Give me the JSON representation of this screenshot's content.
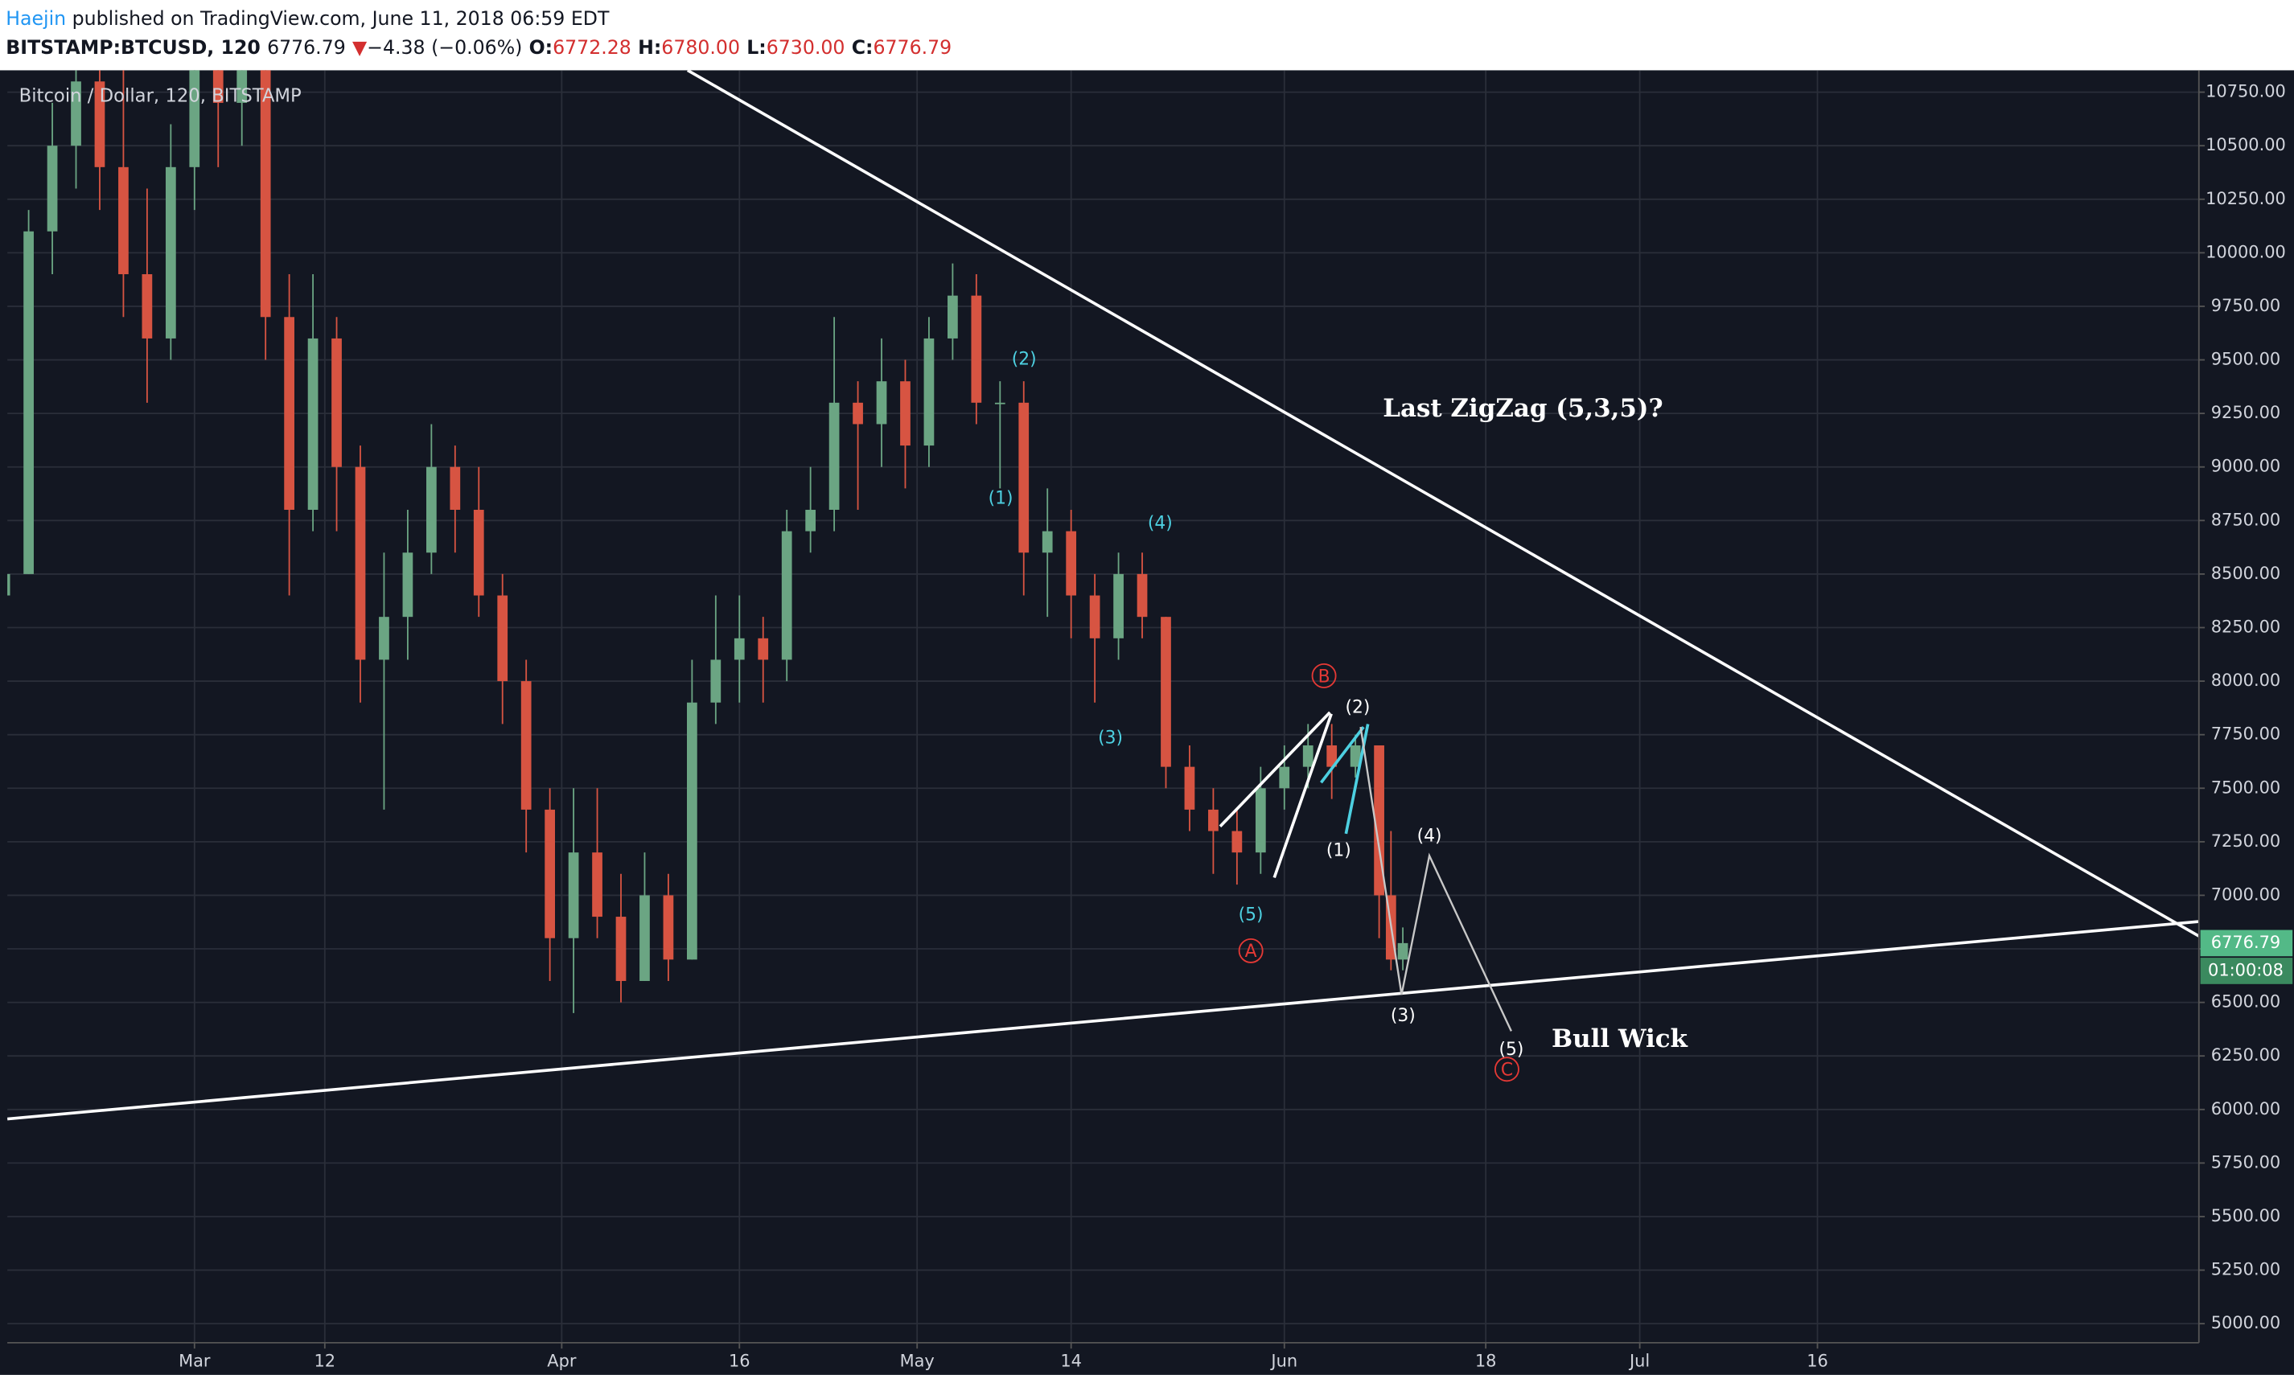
{
  "header": {
    "user": "Haejin",
    "published": "published on TradingView.com, June 11, 2018 06:59 EDT",
    "symbol": "BITSTAMP:BTCUSD, 120",
    "last": "6776.79",
    "arrow": "▼",
    "change": "−4.38 (−0.06%)",
    "o_label": "O:",
    "o": "6772.28",
    "h_label": "H:",
    "h": "6780.00",
    "l_label": "L:",
    "l": "6730.00",
    "c_label": "C:",
    "c": "6776.79"
  },
  "chart_data": {
    "type": "candlestick",
    "title": "Bitcoin / Dollar, 120, BITSTAMP",
    "up_color": "#6ba583",
    "down_color": "#d75442",
    "grid": true,
    "x": [
      44,
      46,
      48,
      50,
      52,
      54,
      56,
      58,
      60,
      62,
      64,
      66,
      68,
      70,
      72,
      74,
      76,
      78,
      80,
      82,
      84,
      86,
      88,
      90,
      92,
      94,
      96,
      98,
      100,
      102,
      104,
      106,
      108,
      110,
      112,
      114,
      116,
      118,
      120,
      122,
      124,
      126,
      128,
      130,
      132,
      134,
      136,
      138,
      140,
      142,
      144,
      146,
      148,
      150,
      152,
      154,
      156,
      158,
      160,
      161,
      162
    ],
    "open": [
      8400,
      8500,
      10100,
      10500,
      10800,
      10400,
      9900,
      9600,
      10400,
      10900,
      10700,
      11000,
      9700,
      8800,
      9600,
      9000,
      8100,
      8300,
      8600,
      9000,
      8800,
      8400,
      8000,
      7400,
      6800,
      7200,
      6900,
      6600,
      7000,
      6700,
      7900,
      8100,
      8200,
      8100,
      8700,
      8800,
      9300,
      9200,
      9400,
      9100,
      9600,
      9800,
      9300,
      9300,
      8600,
      8700,
      8400,
      8200,
      8500,
      8300,
      7600,
      7400,
      7300,
      7200,
      7500,
      7600,
      7700,
      7600,
      7700,
      7000,
      6700
    ],
    "high": [
      8700,
      10200,
      10700,
      11200,
      11200,
      10900,
      10300,
      10600,
      11100,
      11200,
      11200,
      11100,
      9900,
      9900,
      9700,
      9100,
      8600,
      8800,
      9200,
      9100,
      9000,
      8500,
      8100,
      7500,
      7500,
      7500,
      7100,
      7200,
      7100,
      8100,
      8400,
      8400,
      8300,
      8800,
      9000,
      9700,
      9400,
      9600,
      9500,
      9700,
      9950,
      9900,
      9400,
      9400,
      8900,
      8800,
      8500,
      8600,
      8600,
      8300,
      7700,
      7500,
      7400,
      7600,
      7700,
      7800,
      7800,
      7750,
      7700,
      7300,
      6850
    ],
    "low": [
      8300,
      8500,
      9900,
      10300,
      10200,
      9700,
      9300,
      9500,
      10200,
      10400,
      10500,
      9500,
      8400,
      8700,
      8700,
      7900,
      7400,
      8100,
      8500,
      8600,
      8300,
      7800,
      7200,
      6600,
      6450,
      6800,
      6500,
      6600,
      6600,
      6700,
      7800,
      7900,
      7900,
      8000,
      8600,
      8700,
      8800,
      9000,
      8900,
      9000,
      9500,
      9200,
      8900,
      8400,
      8300,
      8200,
      7900,
      8100,
      8200,
      7500,
      7300,
      7100,
      7050,
      7100,
      7400,
      7500,
      7450,
      7550,
      6800,
      6650,
      6650
    ],
    "close": [
      8500,
      10100,
      10500,
      10800,
      10400,
      9900,
      9600,
      10400,
      10900,
      10700,
      11000,
      9700,
      8800,
      9600,
      9000,
      8100,
      8300,
      8600,
      9000,
      8800,
      8400,
      8000,
      7400,
      6800,
      7200,
      6900,
      6600,
      7000,
      6700,
      7900,
      8100,
      8200,
      8100,
      8700,
      8800,
      9300,
      9200,
      9400,
      9100,
      9600,
      9800,
      9300,
      9300,
      8600,
      8700,
      8400,
      8200,
      8500,
      8300,
      7600,
      7400,
      7300,
      7200,
      7500,
      7600,
      7700,
      7600,
      7700,
      7000,
      6700,
      6776.79
    ],
    "xlim": [
      44.2,
      229.2
    ],
    "xticks": [
      {
        "value": 60,
        "label": "Mar"
      },
      {
        "value": 71,
        "label": "12"
      },
      {
        "value": 91,
        "label": "Apr"
      },
      {
        "value": 106,
        "label": "16"
      },
      {
        "value": 121,
        "label": "May"
      },
      {
        "value": 134,
        "label": "14"
      },
      {
        "value": 152,
        "label": "Jun"
      },
      {
        "value": 169,
        "label": "18"
      },
      {
        "value": 182,
        "label": "Jul"
      },
      {
        "value": 197,
        "label": "16"
      }
    ],
    "ylim": [
      4911,
      10852
    ],
    "yticks": [
      {
        "value": 5000,
        "label": "5000.00"
      },
      {
        "value": 5250,
        "label": "5250.00"
      },
      {
        "value": 5500,
        "label": "5500.00"
      },
      {
        "value": 5750,
        "label": "5750.00"
      },
      {
        "value": 6000,
        "label": "6000.00"
      },
      {
        "value": 6250,
        "label": "6250.00"
      },
      {
        "value": 6500,
        "label": "6500.00"
      },
      {
        "value": 6750,
        "label": "6750.00"
      },
      {
        "value": 7000,
        "label": "7000.00"
      },
      {
        "value": 7250,
        "label": "7250.00"
      },
      {
        "value": 7500,
        "label": "7500.00"
      },
      {
        "value": 7750,
        "label": "7750.00"
      },
      {
        "value": 8000,
        "label": "8000.00"
      },
      {
        "value": 8250,
        "label": "8250.00"
      },
      {
        "value": 8500,
        "label": "8500.00"
      },
      {
        "value": 8750,
        "label": "8750.00"
      },
      {
        "value": 9000,
        "label": "9000.00"
      },
      {
        "value": 9250,
        "label": "9250.00"
      },
      {
        "value": 9500,
        "label": "9500.00"
      },
      {
        "value": 9750,
        "label": "9750.00"
      },
      {
        "value": 10000,
        "label": "10000.00"
      },
      {
        "value": 10250,
        "label": "10250.00"
      },
      {
        "value": 10500,
        "label": "10500.00"
      },
      {
        "value": 10750,
        "label": "10750.00"
      }
    ],
    "last_price": 6776.79,
    "countdown": "01:00:08",
    "annotations": [
      "(2)",
      "(1)",
      "(4)",
      "(3)",
      "(5)",
      "A",
      "B",
      "(2)",
      "(1)",
      "(4)",
      "(3)",
      "(5)",
      "C",
      "Last ZigZag (5,3,5)?",
      "Bull Wick"
    ]
  }
}
